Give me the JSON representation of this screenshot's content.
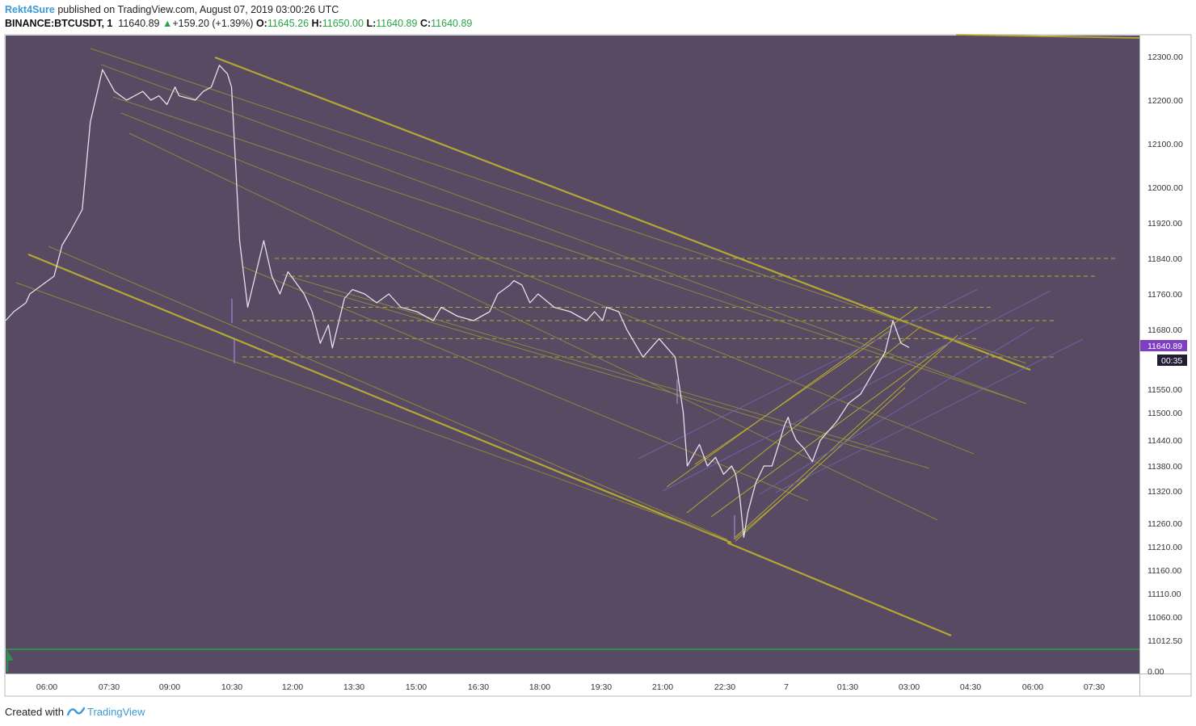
{
  "header": {
    "author": "Rekt4Sure",
    "published": " published on TradingView.com, August 07, 2019 03:00:26 UTC",
    "symbol": "BINANCE:BTCUSDT, 1",
    "last": "11640.89",
    "change_arrow": "▲",
    "change": "+159.20 (+1.39%)",
    "o_label": "O:",
    "o": "11645.26",
    "h_label": "H:",
    "h": "11650.00",
    "l_label": "L:",
    "l": "11640.89",
    "c_label": "C:",
    "c": "11640.89"
  },
  "footer": {
    "created_with": "Created with",
    "brand": "TradingView",
    "logo_icon": "tradingview-logo-icon"
  },
  "colors": {
    "background": "#574a62",
    "drawing": "#b5a832",
    "drawing_faint": "#8e8540",
    "blue_line": "#6a64a8",
    "price_badge": "#7e3fc4",
    "countdown_badge": "#231d34",
    "volume": "#2e8f4f"
  },
  "chart_data": {
    "type": "line",
    "title": "",
    "symbol": "BINANCE:BTCUSDT",
    "interval": "1",
    "last_price": "11640.89",
    "countdown": "00:35",
    "grid": false,
    "x_tick_labels": [
      "06:00",
      "07:30",
      "09:00",
      "10:30",
      "12:00",
      "13:30",
      "15:00",
      "16:30",
      "18:00",
      "19:30",
      "21:00",
      "22:30",
      "7",
      "01:30",
      "03:00",
      "04:30",
      "06:00",
      "07:30"
    ],
    "y_tick_labels": [
      "12300.00",
      "12200.00",
      "12100.00",
      "12000.00",
      "11920.00",
      "11840.00",
      "11760.00",
      "11680.00",
      "11550.00",
      "11500.00",
      "11440.00",
      "11380.00",
      "11320.00",
      "11260.00",
      "11210.00",
      "11160.00",
      "11110.00",
      "11060.00",
      "11012.50"
    ],
    "volume_axis_label": "0.00",
    "price_anchors": {
      "x": [
        0,
        10,
        25,
        30,
        45,
        60,
        70,
        80,
        95,
        105,
        120,
        135,
        150,
        160,
        170,
        180,
        190,
        200,
        210,
        215,
        235,
        245,
        255,
        265,
        275,
        280,
        290,
        300,
        320,
        330,
        340,
        350,
        370,
        380,
        390,
        400,
        405,
        420,
        430,
        445,
        460,
        475,
        490,
        510,
        530,
        540,
        550,
        560,
        580,
        600,
        610,
        625,
        630,
        640,
        650,
        660,
        680,
        700,
        710,
        720,
        730,
        740,
        745,
        760,
        770,
        790,
        810,
        820,
        830,
        840,
        845,
        860,
        870,
        880,
        890,
        900,
        905,
        910,
        915,
        920,
        930,
        940,
        950,
        960,
        965,
        970,
        975,
        980,
        990,
        1000,
        1010,
        1020,
        1030,
        1045,
        1060,
        1070,
        1080,
        1090,
        1100,
        1110,
        1120
      ],
      "close": [
        11700,
        11720,
        11740,
        11760,
        11780,
        11800,
        11870,
        11900,
        11950,
        12150,
        12270,
        12220,
        12200,
        12210,
        12220,
        12200,
        12210,
        12190,
        12230,
        12210,
        12200,
        12220,
        12230,
        12280,
        12260,
        12230,
        11880,
        11730,
        11880,
        11800,
        11760,
        11810,
        11760,
        11720,
        11650,
        11690,
        11640,
        11750,
        11770,
        11760,
        11740,
        11760,
        11730,
        11720,
        11700,
        11730,
        11720,
        11710,
        11700,
        11720,
        11760,
        11780,
        11790,
        11780,
        11740,
        11760,
        11730,
        11720,
        11710,
        11700,
        11720,
        11700,
        11730,
        11720,
        11680,
        11620,
        11660,
        11640,
        11620,
        11500,
        11380,
        11430,
        11380,
        11400,
        11360,
        11380,
        11360,
        11310,
        11230,
        11280,
        11340,
        11380,
        11380,
        11440,
        11470,
        11490,
        11460,
        11440,
        11420,
        11390,
        11440,
        11460,
        11480,
        11520,
        11540,
        11570,
        11600,
        11630,
        11700,
        11650,
        11640.89
      ]
    },
    "horizontal_levels": [
      11840,
      11800,
      11730,
      11700,
      11660,
      11620
    ],
    "ylim": [
      10990,
      12340
    ],
    "volume": "flat (near zero) histogram"
  }
}
